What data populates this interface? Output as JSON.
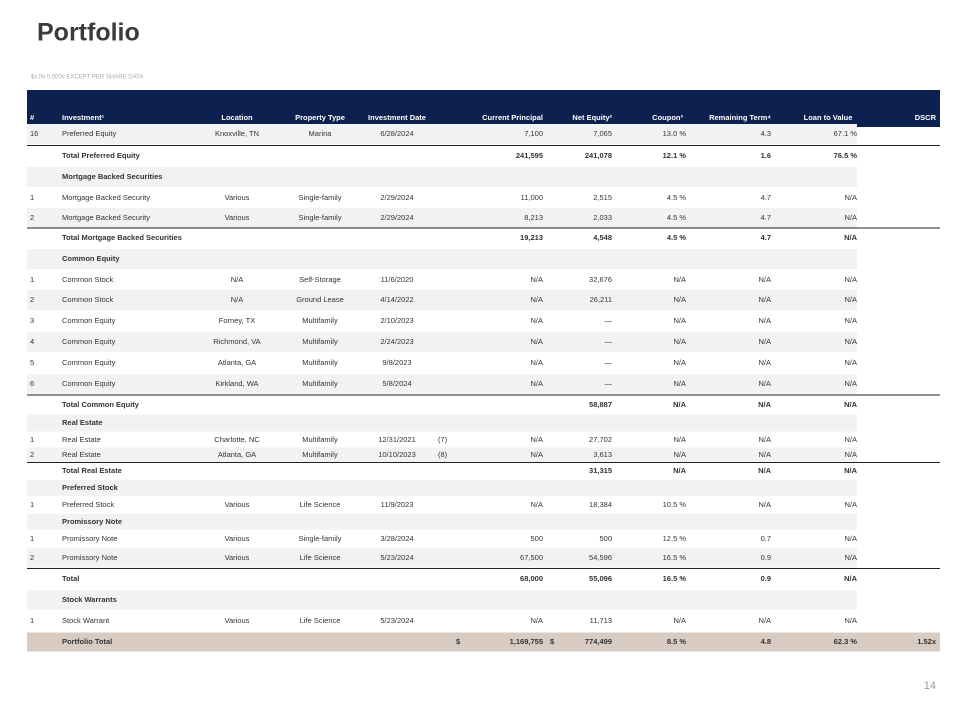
{
  "title": "Portfolio",
  "subtitle": "$s IN 0,000s EXCEPT PER SHARE DATA",
  "table": {
    "header": [
      "#",
      "Investment¹",
      "Location",
      "Property Type",
      "Investment Date",
      "Current Principal",
      "Net Equity²",
      "Coupon³",
      "Remaining Term⁴",
      "Loan to Value",
      "DSCR"
    ],
    "rows": [
      {
        "cells": [
          "16",
          "Preferred Equity",
          "Knoxville, TN",
          "Marina",
          "6/28/2024",
          "7,100",
          "7,065",
          "13.0 %",
          "4.3",
          "67.1 %",
          null
        ]
      },
      {
        "total": [
          null,
          "Total Preferred Equity",
          null,
          null,
          null,
          "241,595",
          "241,078",
          "12.1 %",
          "1.6",
          "76.5 %",
          null
        ]
      },
      {
        "section": "Mortgage Backed Securities"
      },
      {
        "cells": [
          "1",
          "Mortgage Backed Security",
          "Various",
          "Single-family",
          "2/29/2024",
          "11,000",
          "2,515",
          "4.5 %",
          "4.7",
          "N/A",
          null
        ]
      },
      {
        "cells": [
          "2",
          "Mortgage Backed Security",
          "Various",
          "Single-family",
          "2/29/2024",
          "8,213",
          "2,033",
          "4.5 %",
          "4.7",
          "N/A",
          null
        ]
      },
      {
        "total": [
          null,
          "Total Mortgage Backed Securities",
          null,
          null,
          null,
          "19,213",
          "4,548",
          "4.5 %",
          "4.7",
          "N/A",
          null
        ]
      },
      {
        "section": "Common Equity"
      },
      {
        "cells": [
          "1",
          "Common Stock",
          "N/A",
          "Self-Storage",
          "11/6/2020",
          "N/A",
          "32,676",
          "N/A",
          "N/A",
          "N/A",
          null
        ]
      },
      {
        "cells": [
          "2",
          "Common Stock",
          "N/A",
          "Ground Lease",
          "4/14/2022",
          "N/A",
          "26,211",
          "N/A",
          "N/A",
          "N/A",
          null
        ]
      },
      {
        "cells": [
          "3",
          "Common Equity",
          "Forney, TX",
          "Multifamily",
          "2/10/2023",
          "N/A",
          "—",
          "N/A",
          "N/A",
          "N/A",
          null
        ]
      },
      {
        "cells": [
          "4",
          "Common Equity",
          "Richmond, VA",
          "Multifamily",
          "2/24/2023",
          "N/A",
          "—",
          "N/A",
          "N/A",
          "N/A",
          null
        ]
      },
      {
        "cells": [
          "5",
          "Common Equity",
          "Atlanta, GA",
          "Multifamily",
          "9/8/2023",
          "N/A",
          "—",
          "N/A",
          "N/A",
          "N/A",
          null
        ]
      },
      {
        "cells": [
          "6",
          "Common Equity",
          "Kirkland, WA",
          "Multifamily",
          "5/8/2024",
          "N/A",
          "—",
          "N/A",
          "N/A",
          "N/A",
          null
        ]
      },
      {
        "total": [
          null,
          "Total Common Equity",
          null,
          null,
          null,
          null,
          "58,887",
          "N/A",
          "N/A",
          "N/A",
          null
        ]
      },
      {
        "section": "Real Estate"
      },
      {
        "cells": [
          "1",
          "Real Estate",
          "Charlotte, NC",
          "Multifamily",
          "12/31/2021",
          "N/A",
          "27,702",
          "N/A",
          "N/A",
          "N/A",
          null
        ],
        "note": "(7)"
      },
      {
        "cells": [
          "2",
          "Real Estate",
          "Atlanta, GA",
          "Multifamily",
          "10/10/2023",
          "N/A",
          "3,613",
          "N/A",
          "N/A",
          "N/A",
          null
        ],
        "note": "(8)"
      },
      {
        "total": [
          null,
          "Total Real Estate",
          null,
          null,
          null,
          null,
          "31,315",
          "N/A",
          "N/A",
          "N/A",
          null
        ]
      },
      {
        "section": "Preferred Stock"
      },
      {
        "cells": [
          "1",
          "Preferred Stock",
          "Various",
          "Life Science",
          "11/9/2023",
          "N/A",
          "18,384",
          "10.5 %",
          "N/A",
          "N/A",
          null
        ]
      },
      {
        "section": "Promissory Note"
      },
      {
        "cells": [
          "1",
          "Promissory Note",
          "Various",
          "Single-family",
          "3/28/2024",
          "500",
          "500",
          "12.5 %",
          "0.7",
          "N/A",
          null
        ]
      },
      {
        "cells": [
          "2",
          "Promissory Note",
          "Various",
          "Life Science",
          "5/23/2024",
          "67,500",
          "54,596",
          "16.5 %",
          "0.9",
          "N/A",
          null
        ]
      },
      {
        "total": [
          null,
          "Total",
          null,
          null,
          null,
          "68,000",
          "55,096",
          "16.5 %",
          "0.9",
          "N/A",
          null
        ]
      },
      {
        "section": "Stock Warrants"
      },
      {
        "cells": [
          "1",
          "Stock Warrant",
          "Various",
          "Life Science",
          "5/23/2024",
          "N/A",
          "11,713",
          "N/A",
          "N/A",
          "N/A",
          null
        ]
      },
      {
        "portfolio_total": [
          null,
          "Portfolio Total",
          null,
          null,
          null,
          "1,169,755",
          "774,499",
          "8.5 %",
          "4.8",
          "62.3 %",
          "1.52x"
        ],
        "currency": "$"
      }
    ]
  },
  "page_number": "14"
}
